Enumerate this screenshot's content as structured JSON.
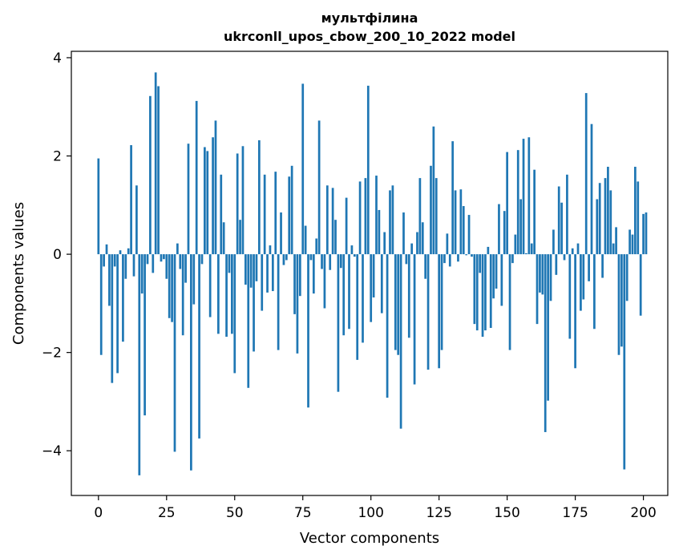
{
  "chart_data": {
    "type": "bar",
    "title_line1": "мультфілина",
    "title_line2": "ukrconll_upos_cbow_200_10_2022 model",
    "xlabel": "Vector components",
    "ylabel": "Components values",
    "xlim": [
      -9.95,
      208.95
    ],
    "ylim": [
      -4.91,
      4.13
    ],
    "xticks": [
      0,
      25,
      50,
      75,
      100,
      125,
      150,
      175,
      200
    ],
    "xtick_labels": [
      "0",
      "25",
      "50",
      "75",
      "100",
      "125",
      "150",
      "175",
      "200"
    ],
    "yticks": [
      -4,
      -2,
      0,
      2,
      4
    ],
    "ytick_labels": [
      "−4",
      "−2",
      "0",
      "2",
      "4"
    ],
    "grid": false,
    "bar_color": "#1f77b4",
    "values": [
      1.95,
      -2.05,
      -0.25,
      0.2,
      -1.05,
      -2.62,
      -0.25,
      -2.42,
      0.08,
      -1.78,
      -0.5,
      0.12,
      2.22,
      -0.45,
      1.4,
      -4.5,
      -0.8,
      -3.28,
      -0.2,
      3.22,
      -0.38,
      3.7,
      3.42,
      -0.15,
      -0.1,
      -0.5,
      -1.3,
      -1.38,
      -4.02,
      0.22,
      -0.3,
      -1.65,
      -0.58,
      2.25,
      -4.4,
      -1.02,
      3.12,
      -3.75,
      -0.2,
      2.18,
      2.1,
      -1.28,
      2.38,
      2.72,
      -1.62,
      1.62,
      0.65,
      -1.68,
      -0.38,
      -1.62,
      -2.42,
      2.05,
      0.7,
      2.2,
      -0.62,
      -2.72,
      -0.68,
      -1.98,
      -0.55,
      2.32,
      -1.15,
      1.62,
      -0.78,
      0.18,
      -0.75,
      1.68,
      -1.95,
      0.85,
      -0.22,
      -0.12,
      1.58,
      1.8,
      -1.22,
      -2.02,
      -0.85,
      3.47,
      0.58,
      -3.12,
      -0.12,
      -0.8,
      0.32,
      2.72,
      -0.3,
      -1.1,
      1.4,
      -0.32,
      1.35,
      0.7,
      -2.8,
      -0.28,
      -1.65,
      1.15,
      -1.52,
      0.18,
      -0.05,
      -2.15,
      1.48,
      -1.8,
      1.55,
      3.43,
      -1.38,
      -0.88,
      1.6,
      0.9,
      -1.2,
      0.45,
      -2.92,
      1.3,
      1.4,
      -1.95,
      -2.05,
      -3.55,
      0.85,
      -0.2,
      -1.7,
      0.22,
      -2.65,
      0.45,
      1.55,
      0.65,
      -0.5,
      -2.35,
      1.8,
      2.6,
      1.55,
      -2.32,
      -1.95,
      -0.18,
      0.42,
      -0.25,
      2.3,
      1.3,
      -0.15,
      1.32,
      0.98,
      -0.02,
      0.8,
      -0.05,
      -1.42,
      -1.55,
      -0.38,
      -1.68,
      -1.55,
      0.15,
      -1.5,
      -0.9,
      -0.7,
      1.02,
      -1.05,
      0.88,
      2.08,
      -1.95,
      -0.18,
      0.4,
      2.12,
      1.12,
      2.35,
      0.02,
      2.38,
      0.22,
      1.72,
      -1.42,
      -0.78,
      -0.82,
      -3.62,
      -2.98,
      -0.95,
      0.5,
      -0.42,
      1.38,
      1.05,
      -0.12,
      1.62,
      -1.72,
      0.12,
      -2.32,
      0.22,
      -1.15,
      -0.92,
      3.28,
      -0.55,
      2.65,
      -1.52,
      1.12,
      1.45,
      -0.48,
      1.55,
      1.78,
      1.3,
      0.22,
      0.55,
      -2.05,
      -1.88,
      -4.38,
      -0.95,
      0.5,
      0.4,
      1.78,
      1.48,
      -1.25,
      0.82,
      0.85
    ]
  }
}
